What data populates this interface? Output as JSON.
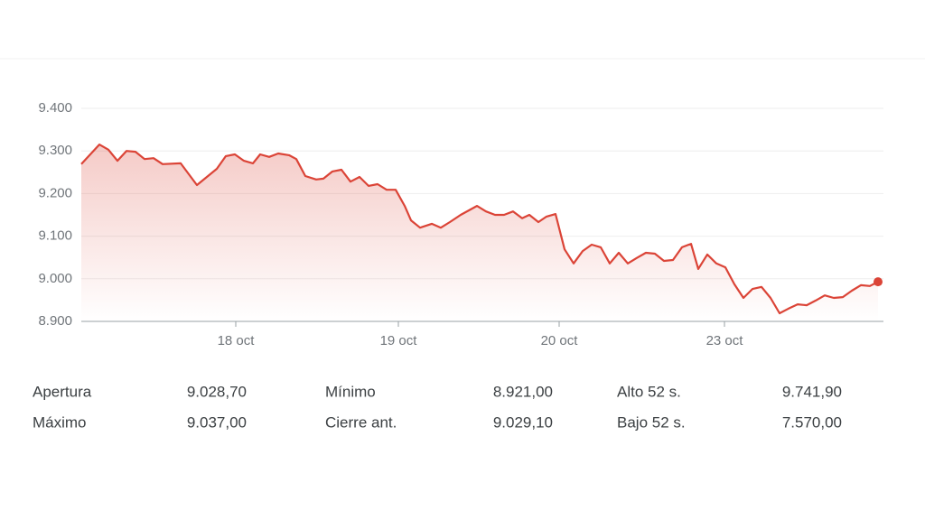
{
  "chart_data": {
    "type": "line",
    "x": [
      0,
      2,
      3,
      4,
      5,
      6,
      7,
      8,
      9,
      11,
      12.8,
      15,
      16,
      17,
      18,
      19,
      19.8,
      20.8,
      21.8,
      23,
      23.8,
      24.8,
      26,
      26.8,
      27.8,
      28.8,
      29.8,
      30.8,
      31.8,
      32.8,
      33.8,
      34.8,
      35.8,
      36.5,
      37.5,
      38.8,
      39.8,
      40.8,
      42,
      43.8,
      44.8,
      45.8,
      46.8,
      47.8,
      48.8,
      49.6,
      50.6,
      51.5,
      52.5,
      53.5,
      54.5,
      55.5,
      56.5,
      57.5,
      58.5,
      59.5,
      60.5,
      61.5,
      62.5,
      63.5,
      64.5,
      65.5,
      66.5,
      67.5,
      68.3,
      69.3,
      70.3,
      71.3,
      72.3,
      73.3,
      74.3,
      75.3,
      76.3,
      77.3,
      78.3,
      79.3,
      80.3,
      81.3,
      82.3,
      83.3,
      84.3,
      85.3,
      86.3,
      87.3,
      88.2
    ],
    "values": [
      9269,
      9315,
      9303,
      9277,
      9300,
      9298,
      9281,
      9283,
      9269,
      9271,
      9220,
      9258,
      9288,
      9292,
      9277,
      9271,
      9292,
      9286,
      9294,
      9290,
      9281,
      9241,
      9233,
      9235,
      9252,
      9256,
      9228,
      9239,
      9218,
      9222,
      9209,
      9209,
      9171,
      9137,
      9120,
      9129,
      9120,
      9133,
      9150,
      9171,
      9158,
      9150,
      9150,
      9158,
      9142,
      9150,
      9133,
      9146,
      9152,
      9069,
      9036,
      9065,
      9080,
      9074,
      9036,
      9061,
      9036,
      9049,
      9061,
      9059,
      9042,
      9044,
      9074,
      9082,
      9023,
      9057,
      9036,
      9027,
      8987,
      8955,
      8976,
      8981,
      8955,
      8919,
      8930,
      8940,
      8938,
      8949,
      8961,
      8955,
      8957,
      8972,
      8985,
      8983,
      8993
    ],
    "color": "#db4437",
    "xlim": [
      0,
      88.8
    ],
    "xticks": [
      {
        "value": 17.1,
        "label": "18 oct"
      },
      {
        "value": 35.1,
        "label": "19 oct"
      },
      {
        "value": 52.9,
        "label": "20 oct"
      },
      {
        "value": 71.2,
        "label": "23 oct"
      }
    ],
    "ylim": [
      8900,
      9400
    ],
    "yticks": [
      {
        "value": 8900,
        "label": "8.900"
      },
      {
        "value": 9000,
        "label": "9.000"
      },
      {
        "value": 9100,
        "label": "9.100"
      },
      {
        "value": 9200,
        "label": "9.200"
      },
      {
        "value": 9300,
        "label": "9.300"
      },
      {
        "value": 9400,
        "label": "9.400"
      }
    ],
    "grid": true
  },
  "stats": [
    [
      [
        "Apertura",
        "9.028,70"
      ],
      [
        "Mínimo",
        "8.921,00"
      ],
      [
        "Alto 52 s.",
        "9.741,90"
      ]
    ],
    [
      [
        "Máximo",
        "9.037,00"
      ],
      [
        "Cierre ant.",
        "9.029,10"
      ],
      [
        "Bajo 52 s.",
        "7.570,00"
      ]
    ]
  ]
}
